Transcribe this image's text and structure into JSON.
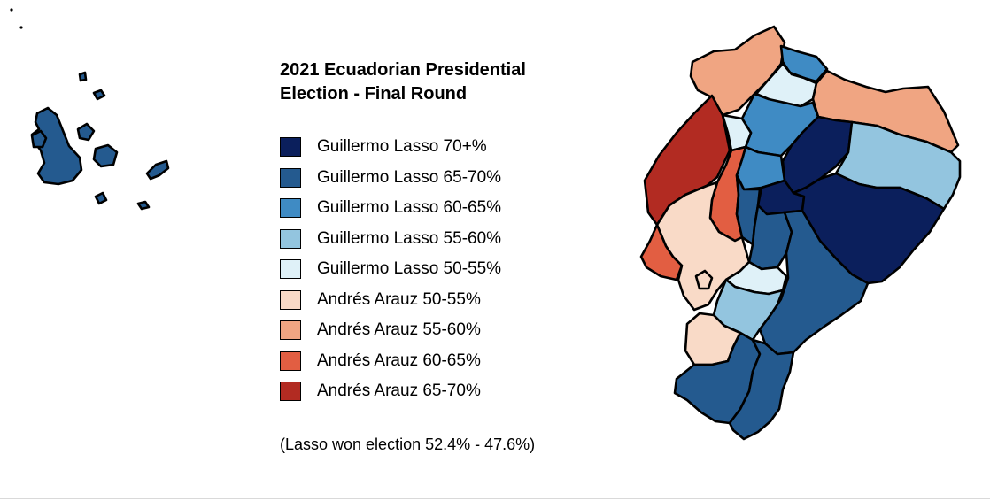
{
  "title_line1": "2021 Ecuadorian Presidential",
  "title_line2": "Election - Final Round",
  "legend": [
    {
      "label": "Guillermo Lasso 70+%",
      "color": "#0b1f5c"
    },
    {
      "label": "Guillermo Lasso 65-70%",
      "color": "#245a8f"
    },
    {
      "label": "Guillermo Lasso 60-65%",
      "color": "#3f8bc4"
    },
    {
      "label": "Guillermo Lasso 55-60%",
      "color": "#93c5df"
    },
    {
      "label": "Guillermo Lasso 50-55%",
      "color": "#dff1f8"
    },
    {
      "label": "Andrés Arauz 50-55%",
      "color": "#f9dac7"
    },
    {
      "label": "Andrés Arauz 55-60%",
      "color": "#f0a582"
    },
    {
      "label": "Andrés Arauz 60-65%",
      "color": "#e25e42"
    },
    {
      "label": "Andrés Arauz 65-70%",
      "color": "#b22b22"
    }
  ],
  "note": "(Lasso won election 52.4% - 47.6%)"
}
